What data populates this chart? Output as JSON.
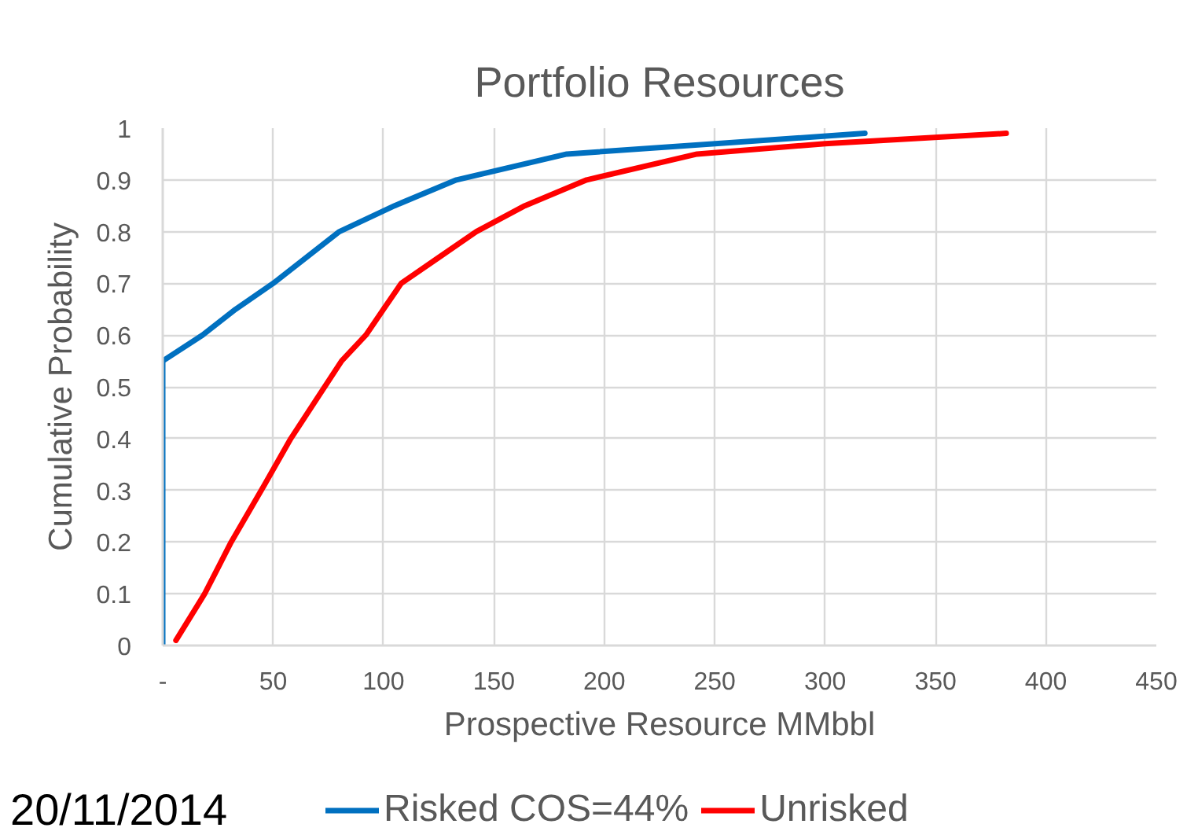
{
  "chart_data": {
    "type": "line",
    "title": "Portfolio Resources",
    "xlabel": "Prospective Resource MMbbl",
    "ylabel": "Cumulative Probability",
    "xlim": [
      0,
      450
    ],
    "xticks": [
      {
        "value": 0,
        "label": "-"
      },
      50,
      100,
      150,
      200,
      250,
      300,
      350,
      400,
      450
    ],
    "ylim": [
      0,
      1
    ],
    "yticks": [
      0,
      0.1,
      0.2,
      0.3,
      0.4,
      0.5,
      0.6,
      0.7,
      0.8,
      0.9,
      1
    ],
    "grid": true,
    "legend": "bottom",
    "line_style": "solid",
    "series": [
      {
        "name": "Risked COS=44%",
        "color": "#0070c0",
        "x": [
          0,
          0,
          18,
          33,
          50,
          80,
          105,
          133,
          183,
          318
        ],
        "values": [
          0,
          0.55,
          0.6,
          0.65,
          0.7,
          0.8,
          0.85,
          0.9,
          0.95,
          0.99
        ]
      },
      {
        "name": "Unrisked",
        "color": "#ff0000",
        "x": [
          6,
          19,
          25,
          31,
          46,
          58,
          81,
          92,
          100,
          108,
          125,
          142,
          164,
          192,
          242,
          300,
          382
        ],
        "values": [
          0.01,
          0.1,
          0.15,
          0.2,
          0.31,
          0.4,
          0.55,
          0.6,
          0.65,
          0.7,
          0.75,
          0.8,
          0.85,
          0.9,
          0.95,
          0.97,
          0.99
        ]
      }
    ],
    "annotations": [
      "20/11/2014"
    ]
  }
}
